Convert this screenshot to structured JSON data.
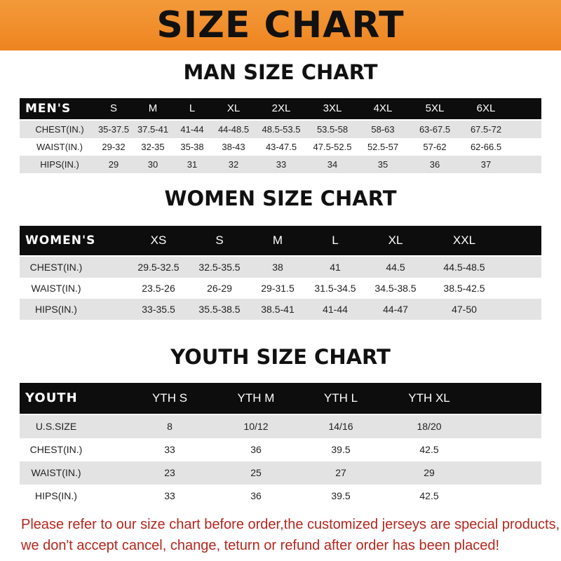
{
  "banner": {
    "title": "SIZE CHART",
    "color": "#ee8420"
  },
  "men": {
    "title": "MAN SIZE CHART",
    "header": [
      "MEN'S",
      "S",
      "M",
      "L",
      "XL",
      "2XL",
      "3XL",
      "4XL",
      "5XL",
      "6XL"
    ],
    "rows": [
      [
        "CHEST(IN.)",
        "35-37.5",
        "37.5-41",
        "41-44",
        "44-48.5",
        "48.5-53.5",
        "53.5-58",
        "58-63",
        "63-67.5",
        "67.5-72"
      ],
      [
        "WAIST(IN.)",
        "29-32",
        "32-35",
        "35-38",
        "38-43",
        "43-47.5",
        "47.5-52.5",
        "52.5-57",
        "57-62",
        "62-66.5"
      ],
      [
        "HIPS(IN.)",
        "29",
        "30",
        "31",
        "32",
        "33",
        "34",
        "35",
        "36",
        "37"
      ]
    ]
  },
  "women": {
    "title": "WOMEN SIZE CHART",
    "header": [
      "WOMEN'S",
      "XS",
      "S",
      "M",
      "L",
      "XL",
      "XXL"
    ],
    "rows": [
      [
        "CHEST(IN.)",
        "29.5-32.5",
        "32.5-35.5",
        "38",
        "41",
        "44.5",
        "44.5-48.5"
      ],
      [
        "WAIST(IN.)",
        "23.5-26",
        "26-29",
        "29-31.5",
        "31.5-34.5",
        "34.5-38.5",
        "38.5-42.5"
      ],
      [
        "HIPS(IN.)",
        "33-35.5",
        "35.5-38.5",
        "38.5-41",
        "41-44",
        "44-47",
        "47-50"
      ]
    ]
  },
  "youth": {
    "title": "YOUTH SIZE CHART",
    "header": [
      "YOUTH",
      "YTH S",
      "YTH M",
      "YTH L",
      "YTH XL"
    ],
    "rows": [
      [
        "U.S.SIZE",
        "8",
        "10/12",
        "14/16",
        "18/20"
      ],
      [
        "CHEST(IN.)",
        "33",
        "36",
        "39.5",
        "42.5"
      ],
      [
        "WAIST(IN.)",
        "23",
        "25",
        "27",
        "29"
      ],
      [
        "HIPS(IN.)",
        "33",
        "36",
        "39.5",
        "42.5"
      ]
    ]
  },
  "footer": {
    "line1": "Please refer to our size chart before order,the customized jerseys are special products,",
    "line2": "we don't accept cancel, change, teturn or refund after order has been placed!",
    "color": "#b3261e"
  }
}
